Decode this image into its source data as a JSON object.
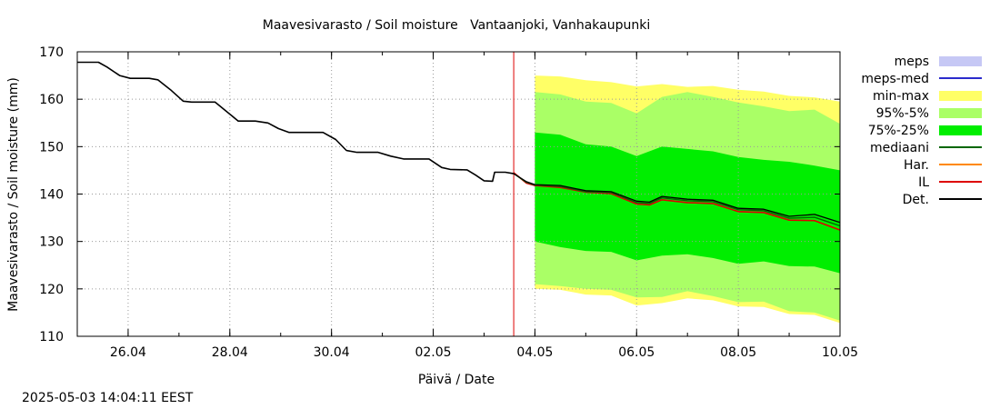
{
  "chart_data": {
    "type": "line",
    "title": "Maavesivarasto / Soil moisture   Vantaanjoki, Vanhakaupunki",
    "xlabel": "Päivä / Date",
    "ylabel": "Maavesivarasto / Soil moisture (mm)",
    "ylim": [
      110,
      170
    ],
    "yticks": [
      110,
      120,
      130,
      140,
      150,
      160,
      170
    ],
    "xlim": [
      "2025-04-25",
      "2025-05-10"
    ],
    "xticks": [
      {
        "date": "2025-04-26",
        "label": "26.04"
      },
      {
        "date": "2025-04-28",
        "label": "28.04"
      },
      {
        "date": "2025-04-30",
        "label": "30.04"
      },
      {
        "date": "2025-05-02",
        "label": "02.05"
      },
      {
        "date": "2025-05-04",
        "label": "04.05"
      },
      {
        "date": "2025-05-06",
        "label": "06.05"
      },
      {
        "date": "2025-05-08",
        "label": "08.05"
      },
      {
        "date": "2025-05-10",
        "label": "10.05"
      }
    ],
    "grid": true,
    "legend_position": "right",
    "forecast_start": "2025-05-03 14:00",
    "legend": [
      {
        "label": "meps",
        "kind": "box",
        "color": "#c6c8f5"
      },
      {
        "label": "meps-med",
        "kind": "line",
        "color": "#2b2bcc"
      },
      {
        "label": "min-max",
        "kind": "box",
        "color": "#ffff66"
      },
      {
        "label": "95%-5%",
        "kind": "box",
        "color": "#aaff66"
      },
      {
        "label": "75%-25%",
        "kind": "box",
        "color": "#00ee00"
      },
      {
        "label": "mediaani",
        "kind": "line",
        "color": "#006600"
      },
      {
        "label": "Har.",
        "kind": "line",
        "color": "#ff8800"
      },
      {
        "label": "IL",
        "kind": "line",
        "color": "#dd0000"
      },
      {
        "label": "Det.",
        "kind": "line",
        "color": "#000000"
      }
    ],
    "series": {
      "observed": {
        "name": "Det.",
        "color": "#000000",
        "points": [
          [
            "2025-04-25 00:00",
            167.8
          ],
          [
            "2025-04-25 10:00",
            167.8
          ],
          [
            "2025-04-25 14:00",
            166.8
          ],
          [
            "2025-04-25 20:00",
            165.0
          ],
          [
            "2025-04-26 01:00",
            164.4
          ],
          [
            "2025-04-26 10:00",
            164.4
          ],
          [
            "2025-04-26 14:00",
            164.1
          ],
          [
            "2025-04-26 20:00",
            162.0
          ],
          [
            "2025-04-27 02:00",
            159.6
          ],
          [
            "2025-04-27 06:00",
            159.4
          ],
          [
            "2025-04-27 17:00",
            159.4
          ],
          [
            "2025-04-27 22:00",
            157.6
          ],
          [
            "2025-04-28 04:00",
            155.4
          ],
          [
            "2025-04-28 12:00",
            155.4
          ],
          [
            "2025-04-28 18:00",
            155.0
          ],
          [
            "2025-04-28 23:00",
            153.8
          ],
          [
            "2025-04-29 04:00",
            153.0
          ],
          [
            "2025-04-29 09:00",
            153.0
          ],
          [
            "2025-04-29 20:00",
            153.0
          ],
          [
            "2025-04-30 02:00",
            151.5
          ],
          [
            "2025-04-30 07:00",
            149.2
          ],
          [
            "2025-04-30 12:00",
            148.8
          ],
          [
            "2025-04-30 22:00",
            148.8
          ],
          [
            "2025-05-01 04:00",
            148.0
          ],
          [
            "2025-05-01 10:00",
            147.4
          ],
          [
            "2025-05-01 22:00",
            147.4
          ],
          [
            "2025-05-02 04:00",
            145.6
          ],
          [
            "2025-05-02 08:00",
            145.2
          ],
          [
            "2025-05-02 16:00",
            145.1
          ],
          [
            "2025-05-02 20:00",
            144.0
          ],
          [
            "2025-05-03 00:00",
            142.8
          ],
          [
            "2025-05-03 04:00",
            142.7
          ],
          [
            "2025-05-03 05:00",
            144.6
          ],
          [
            "2025-05-03 10:00",
            144.6
          ],
          [
            "2025-05-03 14:00",
            144.3
          ]
        ]
      },
      "forecast_det": {
        "name": "Det.",
        "color": "#000000",
        "points": [
          [
            "2025-05-03 14:00",
            144.3
          ],
          [
            "2025-05-03 20:00",
            142.6
          ],
          [
            "2025-05-04 00:00",
            142.0
          ],
          [
            "2025-05-04 12:00",
            141.8
          ],
          [
            "2025-05-05 00:00",
            140.7
          ],
          [
            "2025-05-05 12:00",
            140.5
          ],
          [
            "2025-05-06 00:00",
            138.5
          ],
          [
            "2025-05-06 06:00",
            138.3
          ],
          [
            "2025-05-06 12:00",
            139.5
          ],
          [
            "2025-05-07 00:00",
            138.9
          ],
          [
            "2025-05-07 12:00",
            138.7
          ],
          [
            "2025-05-08 00:00",
            137.0
          ],
          [
            "2025-05-08 12:00",
            136.8
          ],
          [
            "2025-05-09 00:00",
            135.3
          ],
          [
            "2025-05-09 12:00",
            135.7
          ],
          [
            "2025-05-10 00:00",
            134.0
          ]
        ]
      },
      "mediaani": {
        "name": "mediaani",
        "color": "#006600",
        "points": [
          [
            "2025-05-03 14:00",
            144.3
          ],
          [
            "2025-05-03 20:00",
            142.5
          ],
          [
            "2025-05-04 00:00",
            141.9
          ],
          [
            "2025-05-04 12:00",
            141.6
          ],
          [
            "2025-05-05 00:00",
            140.5
          ],
          [
            "2025-05-05 12:00",
            140.3
          ],
          [
            "2025-05-06 00:00",
            138.2
          ],
          [
            "2025-05-06 06:00",
            138.0
          ],
          [
            "2025-05-06 12:00",
            139.2
          ],
          [
            "2025-05-07 00:00",
            138.6
          ],
          [
            "2025-05-07 12:00",
            138.4
          ],
          [
            "2025-05-08 00:00",
            136.7
          ],
          [
            "2025-05-08 12:00",
            136.5
          ],
          [
            "2025-05-09 00:00",
            134.9
          ],
          [
            "2025-05-09 12:00",
            135.1
          ],
          [
            "2025-05-10 00:00",
            133.3
          ]
        ]
      },
      "il": {
        "name": "IL",
        "color": "#dd0000",
        "points": [
          [
            "2025-05-03 14:00",
            144.5
          ],
          [
            "2025-05-03 20:00",
            142.3
          ],
          [
            "2025-05-04 00:00",
            141.8
          ],
          [
            "2025-05-04 12:00",
            141.4
          ],
          [
            "2025-05-05 00:00",
            140.4
          ],
          [
            "2025-05-05 12:00",
            140.1
          ],
          [
            "2025-05-06 00:00",
            137.9
          ],
          [
            "2025-05-06 06:00",
            137.7
          ],
          [
            "2025-05-06 12:00",
            138.8
          ],
          [
            "2025-05-07 00:00",
            138.2
          ],
          [
            "2025-05-07 12:00",
            138.0
          ],
          [
            "2025-05-08 00:00",
            136.3
          ],
          [
            "2025-05-08 12:00",
            136.1
          ],
          [
            "2025-05-09 00:00",
            134.5
          ],
          [
            "2025-05-09 12:00",
            134.4
          ],
          [
            "2025-05-10 00:00",
            132.4
          ]
        ]
      },
      "band_minmax": {
        "name": "min-max",
        "color": "#ffff66",
        "points": [
          [
            "2025-05-04 00:00",
            120.0,
            165.0
          ],
          [
            "2025-05-04 12:00",
            119.8,
            164.8
          ],
          [
            "2025-05-05 00:00",
            118.8,
            164.0
          ],
          [
            "2025-05-05 12:00",
            118.6,
            163.6
          ],
          [
            "2025-05-06 00:00",
            116.5,
            162.7
          ],
          [
            "2025-05-06 12:00",
            117.0,
            163.2
          ],
          [
            "2025-05-07 00:00",
            118.0,
            162.6
          ],
          [
            "2025-05-07 12:00",
            117.6,
            162.8
          ],
          [
            "2025-05-08 00:00",
            116.3,
            162.0
          ],
          [
            "2025-05-08 12:00",
            116.2,
            161.6
          ],
          [
            "2025-05-09 00:00",
            114.7,
            160.7
          ],
          [
            "2025-05-09 12:00",
            114.5,
            160.4
          ],
          [
            "2025-05-10 00:00",
            112.8,
            159.5
          ]
        ]
      },
      "band_95_5": {
        "name": "95%-5%",
        "color": "#aaff66",
        "points": [
          [
            "2025-05-04 00:00",
            121.0,
            161.5
          ],
          [
            "2025-05-04 12:00",
            120.6,
            161.0
          ],
          [
            "2025-05-05 00:00",
            120.0,
            159.5
          ],
          [
            "2025-05-05 12:00",
            119.8,
            159.2
          ],
          [
            "2025-05-06 00:00",
            118.2,
            157.0
          ],
          [
            "2025-05-06 12:00",
            118.3,
            160.5
          ],
          [
            "2025-05-07 00:00",
            119.5,
            161.5
          ],
          [
            "2025-05-07 12:00",
            118.5,
            160.5
          ],
          [
            "2025-05-08 00:00",
            117.2,
            159.3
          ],
          [
            "2025-05-08 12:00",
            117.3,
            158.5
          ],
          [
            "2025-05-09 00:00",
            115.3,
            157.5
          ],
          [
            "2025-05-09 12:00",
            115.0,
            157.8
          ],
          [
            "2025-05-10 00:00",
            113.3,
            154.8
          ]
        ]
      },
      "band_75_25": {
        "name": "75%-25%",
        "color": "#00ee00",
        "points": [
          [
            "2025-05-04 00:00",
            130.0,
            153.0
          ],
          [
            "2025-05-04 12:00",
            128.8,
            152.5
          ],
          [
            "2025-05-05 00:00",
            128.0,
            150.5
          ],
          [
            "2025-05-05 12:00",
            127.8,
            150.0
          ],
          [
            "2025-05-06 00:00",
            126.0,
            148.0
          ],
          [
            "2025-05-06 12:00",
            127.0,
            150.0
          ],
          [
            "2025-05-07 00:00",
            127.3,
            149.5
          ],
          [
            "2025-05-07 12:00",
            126.5,
            149.0
          ],
          [
            "2025-05-08 00:00",
            125.3,
            147.8
          ],
          [
            "2025-05-08 12:00",
            125.8,
            147.2
          ],
          [
            "2025-05-09 00:00",
            124.8,
            146.8
          ],
          [
            "2025-05-09 12:00",
            124.7,
            146.0
          ],
          [
            "2025-05-10 00:00",
            123.3,
            145.0
          ]
        ]
      }
    }
  },
  "footer": {
    "timestamp": "2025-05-03 14:04:11 EEST"
  }
}
